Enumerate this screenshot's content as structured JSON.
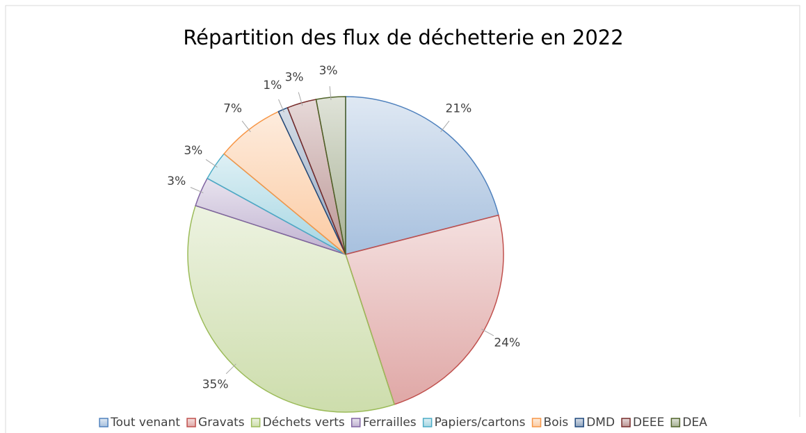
{
  "chart_data": {
    "type": "pie",
    "title": "Répartition des flux de déchetterie en 2022",
    "categories": [
      "Tout venant",
      "Gravats",
      "Déchets verts",
      "Ferrailles",
      "Papiers/cartons",
      "Bois",
      "DMD",
      "DEEE",
      "DEA"
    ],
    "values": [
      21,
      24,
      35,
      3,
      3,
      7,
      1,
      3,
      3
    ],
    "value_labels": [
      "21%",
      "24%",
      "35%",
      "3%",
      "3%",
      "7%",
      "1%",
      "3%",
      "3%"
    ],
    "colors": [
      "#4f81bd",
      "#c0504d",
      "#9bbb59",
      "#8064a2",
      "#4bacc6",
      "#f79646",
      "#1f497d",
      "#772c2a",
      "#4f6228"
    ],
    "legend": "bottom"
  }
}
